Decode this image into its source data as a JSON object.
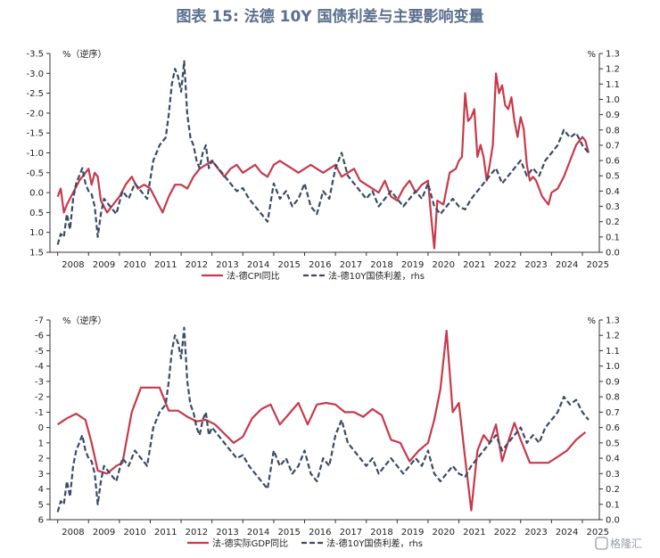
{
  "title": "图表 15: 法德 10Y 国债利差与主要影响变量",
  "watermark": "格隆汇",
  "colors": {
    "red": "#c8394a",
    "navy": "#3b4a66",
    "title": "#5b6f8e"
  },
  "chart_data": [
    {
      "type": "line",
      "left_axis": {
        "label": "%（逆序）",
        "reversed": true,
        "ylim": [
          -3.5,
          1.5
        ],
        "ticks": [
          "-3.5",
          "-3.0",
          "-2.5",
          "-2.0",
          "-1.5",
          "-1.0",
          "-0.5",
          "0.0",
          "0.5",
          "1.0",
          "1.5"
        ]
      },
      "right_axis": {
        "label": "%",
        "ylim": [
          0.0,
          1.3
        ],
        "ticks": [
          "0.0",
          "0.1",
          "0.2",
          "0.3",
          "0.4",
          "0.5",
          "0.6",
          "0.7",
          "0.8",
          "0.9",
          "1.0",
          "1.1",
          "1.2",
          "1.3"
        ]
      },
      "x_ticks": [
        "2008",
        "2009",
        "2010",
        "2011",
        "2012",
        "2013",
        "2014",
        "2015",
        "2016",
        "2017",
        "2018",
        "2019",
        "2020",
        "2021",
        "2022",
        "2023",
        "2024",
        "2025"
      ],
      "series": [
        {
          "name": "法-德CPI同比",
          "axis": "left",
          "style": "solid",
          "x": [
            2008.0,
            2008.1,
            2008.2,
            2008.3,
            2008.5,
            2008.7,
            2008.9,
            2009.0,
            2009.1,
            2009.2,
            2009.3,
            2009.4,
            2009.6,
            2009.8,
            2010.0,
            2010.2,
            2010.4,
            2010.6,
            2010.8,
            2011.0,
            2011.2,
            2011.4,
            2011.6,
            2011.8,
            2012.0,
            2012.2,
            2012.4,
            2012.6,
            2012.8,
            2013.0,
            2013.2,
            2013.4,
            2013.6,
            2013.8,
            2014.0,
            2014.2,
            2014.4,
            2014.6,
            2014.8,
            2015.0,
            2015.2,
            2015.4,
            2015.6,
            2015.8,
            2016.0,
            2016.2,
            2016.4,
            2016.6,
            2016.8,
            2017.0,
            2017.2,
            2017.4,
            2017.6,
            2017.8,
            2018.0,
            2018.2,
            2018.4,
            2018.6,
            2018.8,
            2019.0,
            2019.2,
            2019.4,
            2019.6,
            2019.8,
            2020.0,
            2020.1,
            2020.2,
            2020.3,
            2020.5,
            2020.7,
            2020.9,
            2021.0,
            2021.1,
            2021.2,
            2021.3,
            2021.4,
            2021.5,
            2021.6,
            2021.7,
            2021.8,
            2021.9,
            2022.0,
            2022.1,
            2022.2,
            2022.3,
            2022.4,
            2022.5,
            2022.6,
            2022.7,
            2022.8,
            2022.9,
            2023.0,
            2023.1,
            2023.2,
            2023.3,
            2023.4,
            2023.5,
            2023.7,
            2023.9,
            2024.0,
            2024.2,
            2024.4,
            2024.6,
            2024.8,
            2025.0,
            2025.1,
            2025.2
          ],
          "values": [
            0.1,
            -0.1,
            0.5,
            0.3,
            0.0,
            -0.3,
            -0.5,
            -0.6,
            -0.2,
            -0.5,
            -0.4,
            0.2,
            0.5,
            0.3,
            0.1,
            -0.2,
            -0.4,
            -0.1,
            -0.2,
            -0.1,
            0.2,
            0.5,
            0.1,
            -0.2,
            -0.2,
            -0.1,
            -0.4,
            -0.6,
            -0.7,
            -0.8,
            -0.6,
            -0.4,
            -0.6,
            -0.7,
            -0.5,
            -0.6,
            -0.7,
            -0.5,
            -0.4,
            -0.7,
            -0.8,
            -0.7,
            -0.6,
            -0.5,
            -0.6,
            -0.7,
            -0.6,
            -0.5,
            -0.6,
            -0.7,
            -0.4,
            -0.5,
            -0.6,
            -0.3,
            -0.2,
            -0.1,
            0.0,
            -0.3,
            0.1,
            0.2,
            -0.1,
            -0.3,
            0.0,
            -0.2,
            -0.3,
            0.6,
            1.4,
            0.2,
            0.3,
            -0.5,
            -0.6,
            -0.8,
            -0.9,
            -2.5,
            -1.8,
            -1.9,
            -2.1,
            -0.9,
            -1.2,
            -0.9,
            -0.3,
            -0.7,
            -1.2,
            -3.0,
            -2.5,
            -2.7,
            -2.2,
            -2.1,
            -2.4,
            -1.8,
            -1.4,
            -1.9,
            -1.6,
            -0.7,
            -0.3,
            -0.4,
            -0.3,
            0.1,
            0.3,
            0.0,
            -0.1,
            -0.4,
            -0.8,
            -1.2,
            -1.4,
            -1.3,
            -1.0
          ]
        },
        {
          "name": "法-德10Y国债利差，rhs",
          "axis": "right",
          "style": "dashed",
          "x": [
            2008.0,
            2008.1,
            2008.2,
            2008.3,
            2008.4,
            2008.5,
            2008.6,
            2008.7,
            2008.8,
            2008.9,
            2009.0,
            2009.1,
            2009.2,
            2009.3,
            2009.4,
            2009.5,
            2009.7,
            2009.9,
            2010.1,
            2010.3,
            2010.5,
            2010.7,
            2010.9,
            2011.1,
            2011.3,
            2011.5,
            2011.6,
            2011.7,
            2011.8,
            2011.9,
            2012.0,
            2012.1,
            2012.2,
            2012.3,
            2012.4,
            2012.5,
            2012.6,
            2012.7,
            2012.8,
            2012.9,
            2013.0,
            2013.2,
            2013.4,
            2013.6,
            2013.8,
            2014.0,
            2014.2,
            2014.4,
            2014.6,
            2014.8,
            2015.0,
            2015.2,
            2015.4,
            2015.6,
            2015.8,
            2016.0,
            2016.2,
            2016.4,
            2016.6,
            2016.8,
            2017.0,
            2017.2,
            2017.4,
            2017.6,
            2017.8,
            2018.0,
            2018.2,
            2018.4,
            2018.6,
            2018.8,
            2019.0,
            2019.2,
            2019.4,
            2019.6,
            2019.8,
            2020.0,
            2020.2,
            2020.4,
            2020.6,
            2020.8,
            2021.0,
            2021.2,
            2021.4,
            2021.6,
            2021.8,
            2022.0,
            2022.2,
            2022.4,
            2022.6,
            2022.8,
            2023.0,
            2023.2,
            2023.4,
            2023.6,
            2023.8,
            2024.0,
            2024.2,
            2024.4,
            2024.6,
            2024.8,
            2025.0,
            2025.2
          ],
          "values": [
            0.05,
            0.12,
            0.1,
            0.25,
            0.15,
            0.35,
            0.45,
            0.5,
            0.55,
            0.45,
            0.4,
            0.38,
            0.3,
            0.1,
            0.25,
            0.35,
            0.3,
            0.25,
            0.4,
            0.35,
            0.45,
            0.4,
            0.35,
            0.6,
            0.7,
            0.75,
            0.9,
            1.1,
            1.2,
            1.15,
            1.05,
            1.25,
            0.9,
            0.75,
            0.7,
            0.6,
            0.55,
            0.65,
            0.7,
            0.55,
            0.6,
            0.55,
            0.5,
            0.45,
            0.4,
            0.42,
            0.35,
            0.3,
            0.25,
            0.2,
            0.45,
            0.35,
            0.4,
            0.3,
            0.35,
            0.45,
            0.3,
            0.25,
            0.4,
            0.35,
            0.55,
            0.65,
            0.5,
            0.45,
            0.4,
            0.35,
            0.4,
            0.3,
            0.35,
            0.4,
            0.35,
            0.3,
            0.35,
            0.4,
            0.35,
            0.45,
            0.3,
            0.25,
            0.3,
            0.35,
            0.3,
            0.28,
            0.35,
            0.4,
            0.45,
            0.5,
            0.55,
            0.45,
            0.5,
            0.55,
            0.6,
            0.5,
            0.55,
            0.5,
            0.6,
            0.65,
            0.7,
            0.8,
            0.75,
            0.78,
            0.7,
            0.65
          ]
        }
      ]
    },
    {
      "type": "line",
      "left_axis": {
        "label": "%（逆序）",
        "reversed": true,
        "ylim": [
          -7,
          6
        ],
        "ticks": [
          "-7",
          "-6",
          "-5",
          "-4",
          "-3",
          "-2",
          "-1",
          "0",
          "1",
          "2",
          "3",
          "4",
          "5",
          "6"
        ]
      },
      "right_axis": {
        "label": "%",
        "ylim": [
          0.0,
          1.3
        ],
        "ticks": [
          "0.0",
          "0.1",
          "0.2",
          "0.3",
          "0.4",
          "0.5",
          "0.6",
          "0.7",
          "0.8",
          "0.9",
          "1.0",
          "1.1",
          "1.2",
          "1.3"
        ]
      },
      "x_ticks": [
        "2008",
        "2009",
        "2010",
        "2011",
        "2012",
        "2013",
        "2014",
        "2015",
        "2016",
        "2017",
        "2018",
        "2019",
        "2020",
        "2021",
        "2022",
        "2023",
        "2024",
        "2025"
      ],
      "series": [
        {
          "name": "法-德实际GDP同比",
          "axis": "left",
          "style": "solid",
          "x": [
            2008.0,
            2008.3,
            2008.6,
            2008.9,
            2009.1,
            2009.3,
            2009.6,
            2009.9,
            2010.1,
            2010.4,
            2010.7,
            2011.0,
            2011.3,
            2011.6,
            2011.9,
            2012.2,
            2012.5,
            2012.8,
            2013.1,
            2013.4,
            2013.7,
            2014.0,
            2014.3,
            2014.6,
            2014.9,
            2015.2,
            2015.5,
            2015.8,
            2016.1,
            2016.4,
            2016.7,
            2017.0,
            2017.3,
            2017.6,
            2017.9,
            2018.2,
            2018.5,
            2018.8,
            2019.1,
            2019.4,
            2019.7,
            2020.0,
            2020.2,
            2020.4,
            2020.6,
            2020.8,
            2021.0,
            2021.2,
            2021.4,
            2021.6,
            2021.8,
            2022.0,
            2022.2,
            2022.4,
            2022.6,
            2022.8,
            2023.0,
            2023.3,
            2023.6,
            2023.9,
            2024.2,
            2024.5,
            2024.8,
            2025.1
          ],
          "values": [
            -0.2,
            -0.6,
            -0.9,
            -0.5,
            1.0,
            2.8,
            3.0,
            2.5,
            2.3,
            -1.0,
            -2.6,
            -2.6,
            -2.6,
            -1.1,
            -1.1,
            -0.7,
            -0.4,
            -0.5,
            -0.2,
            0.4,
            1.0,
            0.6,
            -0.6,
            -1.2,
            -1.5,
            -0.2,
            -0.9,
            -1.6,
            -0.2,
            -1.5,
            -1.6,
            -1.5,
            -1.0,
            -1.0,
            -0.7,
            -1.2,
            -0.8,
            0.8,
            1.0,
            2.2,
            1.5,
            1.0,
            -0.5,
            -2.5,
            -6.3,
            -1.0,
            -1.6,
            2.0,
            5.4,
            1.5,
            0.5,
            1.0,
            -0.2,
            2.2,
            0.9,
            -0.3,
            0.8,
            2.3,
            2.3,
            2.3,
            1.9,
            1.5,
            0.8,
            0.3
          ],
          "raw_note": ""
        },
        {
          "name": "法-德10Y国债利差，rhs",
          "axis": "right",
          "style": "dashed",
          "x": [
            2008.0,
            2008.1,
            2008.2,
            2008.3,
            2008.4,
            2008.5,
            2008.6,
            2008.7,
            2008.8,
            2008.9,
            2009.0,
            2009.1,
            2009.2,
            2009.3,
            2009.4,
            2009.5,
            2009.7,
            2009.9,
            2010.1,
            2010.3,
            2010.5,
            2010.7,
            2010.9,
            2011.1,
            2011.3,
            2011.5,
            2011.6,
            2011.7,
            2011.8,
            2011.9,
            2012.0,
            2012.1,
            2012.2,
            2012.3,
            2012.4,
            2012.5,
            2012.6,
            2012.7,
            2012.8,
            2012.9,
            2013.0,
            2013.2,
            2013.4,
            2013.6,
            2013.8,
            2014.0,
            2014.2,
            2014.4,
            2014.6,
            2014.8,
            2015.0,
            2015.2,
            2015.4,
            2015.6,
            2015.8,
            2016.0,
            2016.2,
            2016.4,
            2016.6,
            2016.8,
            2017.0,
            2017.2,
            2017.4,
            2017.6,
            2017.8,
            2018.0,
            2018.2,
            2018.4,
            2018.6,
            2018.8,
            2019.0,
            2019.2,
            2019.4,
            2019.6,
            2019.8,
            2020.0,
            2020.2,
            2020.4,
            2020.6,
            2020.8,
            2021.0,
            2021.2,
            2021.4,
            2021.6,
            2021.8,
            2022.0,
            2022.2,
            2022.4,
            2022.6,
            2022.8,
            2023.0,
            2023.2,
            2023.4,
            2023.6,
            2023.8,
            2024.0,
            2024.2,
            2024.4,
            2024.6,
            2024.8,
            2025.0,
            2025.2
          ],
          "values": [
            0.05,
            0.12,
            0.1,
            0.25,
            0.15,
            0.35,
            0.45,
            0.5,
            0.55,
            0.45,
            0.4,
            0.38,
            0.3,
            0.1,
            0.25,
            0.35,
            0.3,
            0.25,
            0.4,
            0.35,
            0.45,
            0.4,
            0.35,
            0.6,
            0.7,
            0.75,
            0.9,
            1.1,
            1.2,
            1.15,
            1.05,
            1.25,
            0.9,
            0.75,
            0.7,
            0.6,
            0.55,
            0.65,
            0.7,
            0.55,
            0.6,
            0.55,
            0.5,
            0.45,
            0.4,
            0.42,
            0.35,
            0.3,
            0.25,
            0.2,
            0.45,
            0.35,
            0.4,
            0.3,
            0.35,
            0.45,
            0.3,
            0.25,
            0.4,
            0.35,
            0.55,
            0.65,
            0.5,
            0.45,
            0.4,
            0.35,
            0.4,
            0.3,
            0.35,
            0.4,
            0.35,
            0.3,
            0.35,
            0.4,
            0.35,
            0.45,
            0.3,
            0.25,
            0.3,
            0.35,
            0.3,
            0.28,
            0.35,
            0.4,
            0.45,
            0.5,
            0.55,
            0.45,
            0.5,
            0.55,
            0.6,
            0.5,
            0.55,
            0.5,
            0.6,
            0.65,
            0.7,
            0.8,
            0.75,
            0.78,
            0.7,
            0.65
          ]
        }
      ]
    }
  ]
}
